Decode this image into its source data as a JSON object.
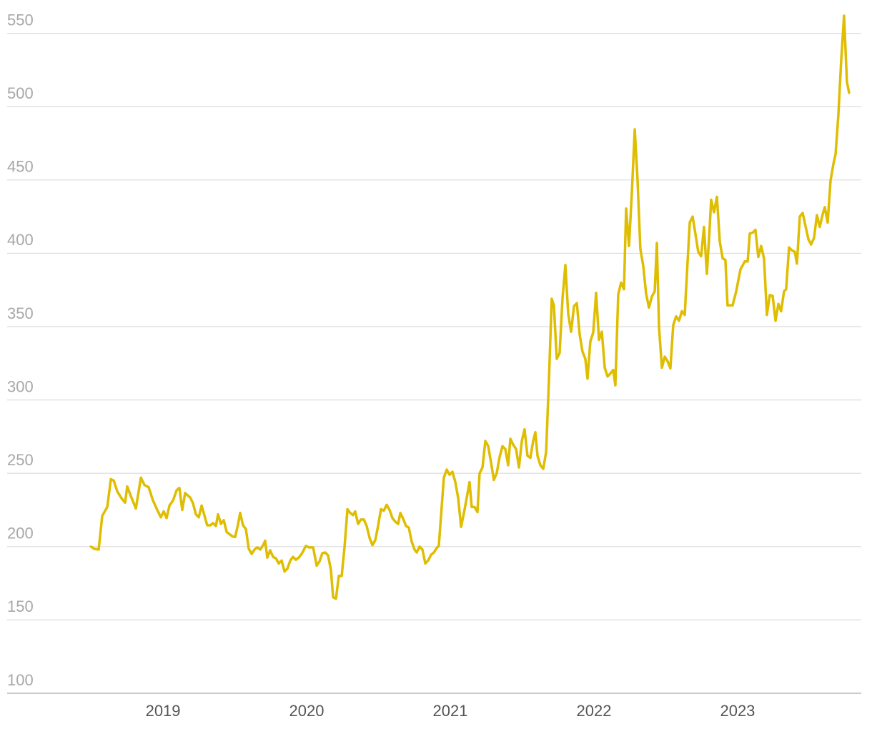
{
  "chart_data": {
    "type": "line",
    "color": "#dfbd00",
    "xlim": [
      2017.915,
      2023.861
    ],
    "xticks": [
      2019,
      2020,
      2021,
      2022,
      2023
    ],
    "ylim": [
      100,
      562
    ],
    "yticks": [
      100,
      150,
      200,
      250,
      300,
      350,
      400,
      450,
      500,
      550
    ],
    "grid": true,
    "x": [
      2018.498,
      2018.522,
      2018.552,
      2018.577,
      2018.612,
      2018.637,
      2018.657,
      2018.682,
      2018.711,
      2018.736,
      2018.751,
      2018.776,
      2018.811,
      2018.846,
      2018.871,
      2018.9,
      2018.93,
      2018.96,
      2018.985,
      2019.005,
      2019.025,
      2019.045,
      2019.07,
      2019.095,
      2019.114,
      2019.134,
      2019.154,
      2019.189,
      2019.209,
      2019.229,
      2019.249,
      2019.269,
      2019.289,
      2019.308,
      2019.328,
      2019.348,
      2019.368,
      2019.383,
      2019.403,
      2019.423,
      2019.443,
      2019.463,
      2019.483,
      2019.502,
      2019.522,
      2019.537,
      2019.557,
      2019.577,
      2019.597,
      2019.617,
      2019.637,
      2019.657,
      2019.677,
      2019.697,
      2019.711,
      2019.726,
      2019.746,
      2019.766,
      2019.786,
      2019.806,
      2019.826,
      2019.846,
      2019.866,
      2019.886,
      2019.905,
      2019.925,
      2019.945,
      2019.965,
      2019.995,
      2020.015,
      2020.045,
      2020.07,
      2020.09,
      2020.109,
      2020.129,
      2020.149,
      2020.169,
      2020.184,
      2020.204,
      2020.224,
      2020.244,
      2020.264,
      2020.284,
      2020.303,
      2020.323,
      2020.338,
      2020.358,
      2020.378,
      2020.398,
      2020.418,
      2020.438,
      2020.458,
      2020.478,
      2020.498,
      2020.517,
      2020.537,
      2020.557,
      2020.577,
      2020.597,
      2020.617,
      2020.637,
      2020.652,
      2020.672,
      2020.692,
      2020.711,
      2020.731,
      2020.751,
      2020.766,
      2020.786,
      2020.806,
      2020.826,
      2020.846,
      2020.866,
      2020.886,
      2020.905,
      2020.92,
      2020.955,
      2020.975,
      2020.995,
      2021.015,
      2021.035,
      2021.055,
      2021.075,
      2021.095,
      2021.114,
      2021.134,
      2021.149,
      2021.169,
      2021.189,
      2021.204,
      2021.224,
      2021.244,
      2021.264,
      2021.284,
      2021.303,
      2021.323,
      2021.343,
      2021.363,
      2021.383,
      2021.403,
      2021.418,
      2021.438,
      2021.458,
      2021.478,
      2021.498,
      2021.517,
      2021.537,
      2021.557,
      2021.577,
      2021.592,
      2021.607,
      2021.627,
      2021.647,
      2021.667,
      2021.687,
      2021.706,
      2021.721,
      2021.741,
      2021.761,
      2021.781,
      2021.801,
      2021.821,
      2021.841,
      2021.861,
      2021.881,
      2021.9,
      2021.92,
      2021.94,
      2021.955,
      2021.975,
      2021.995,
      2022.015,
      2022.035,
      2022.055,
      2022.075,
      2022.095,
      2022.114,
      2022.134,
      2022.149,
      2022.169,
      2022.189,
      2022.209,
      2022.224,
      2022.244,
      2022.264,
      2022.284,
      2022.303,
      2022.323,
      2022.343,
      2022.363,
      2022.383,
      2022.403,
      2022.423,
      2022.438,
      2022.453,
      2022.473,
      2022.493,
      2022.512,
      2022.532,
      2022.552,
      2022.572,
      2022.592,
      2022.612,
      2022.632,
      2022.652,
      2022.667,
      2022.687,
      2022.706,
      2022.726,
      2022.746,
      2022.766,
      2022.786,
      2022.801,
      2022.816,
      2022.836,
      2022.856,
      2022.876,
      2022.896,
      2022.915,
      2022.93,
      2022.965,
      2022.99,
      2023.02,
      2023.05,
      2023.07,
      2023.085,
      2023.104,
      2023.124,
      2023.144,
      2023.164,
      2023.184,
      2023.204,
      2023.224,
      2023.244,
      2023.264,
      2023.284,
      2023.303,
      2023.323,
      2023.338,
      2023.358,
      2023.378,
      2023.398,
      2023.413,
      2023.433,
      2023.453,
      2023.473,
      2023.493,
      2023.512,
      2023.532,
      2023.552,
      2023.572,
      2023.592,
      2023.607,
      2023.627,
      2023.647,
      2023.667,
      2023.682,
      2023.701,
      2023.721,
      2023.741,
      2023.761,
      2023.776
    ],
    "values": [
      200,
      198.5,
      198,
      221,
      227,
      246,
      245,
      237.5,
      233,
      230,
      241,
      234.5,
      226,
      247,
      242,
      240.5,
      231.5,
      225,
      220,
      224,
      219.5,
      228,
      231.5,
      238.5,
      240,
      225,
      236.5,
      233.5,
      229.5,
      222,
      220,
      228,
      221,
      214.5,
      214.5,
      216,
      214,
      222,
      215.5,
      218,
      210,
      208.5,
      207,
      206.5,
      215,
      223,
      214.5,
      212,
      198.5,
      195,
      198,
      199.5,
      198,
      201,
      204,
      192.5,
      197.5,
      193,
      192,
      188.5,
      190.5,
      183,
      185,
      190.5,
      193,
      191,
      192.5,
      195,
      200.5,
      199.5,
      199.5,
      187,
      190,
      195.5,
      196,
      194,
      184,
      165.5,
      164.5,
      180,
      180,
      200,
      225.5,
      223,
      221.5,
      224,
      215.5,
      218.5,
      218.5,
      214,
      206,
      201,
      204.5,
      214.5,
      225.5,
      224.5,
      228.5,
      225,
      219.5,
      217,
      215.5,
      223,
      219,
      214,
      213,
      203.5,
      198,
      196,
      200,
      198,
      188.5,
      190.5,
      194.5,
      196,
      199,
      200.5,
      247,
      252.5,
      249,
      251,
      244,
      233,
      213.5,
      223,
      233,
      244,
      227,
      227,
      223.5,
      250,
      254,
      272,
      268.5,
      257,
      245.5,
      250,
      261,
      268.5,
      266.5,
      255.5,
      273.5,
      269.5,
      266.5,
      254,
      272,
      280,
      262,
      260.5,
      272,
      278,
      262,
      255.5,
      253,
      264.5,
      314.5,
      369,
      364.5,
      328,
      332,
      369,
      392,
      358.5,
      346.5,
      364,
      366,
      345,
      333,
      328,
      314.5,
      340,
      346,
      373,
      341,
      346.5,
      322,
      316,
      318,
      320.5,
      310,
      372,
      380,
      375.5,
      430.5,
      405,
      441.5,
      484.5,
      451,
      403,
      391.5,
      372.5,
      363,
      370.5,
      374,
      407,
      349.5,
      322,
      329.5,
      326.5,
      321.5,
      351,
      357,
      354,
      360.5,
      358,
      394.5,
      421,
      425,
      413.5,
      401,
      398,
      418,
      386,
      409.5,
      436.5,
      428,
      438.5,
      408,
      396.5,
      395.5,
      364.5,
      364.5,
      374,
      389,
      394.5,
      394.5,
      413.5,
      414,
      416,
      397.5,
      405,
      396.5,
      358,
      371.5,
      371,
      354,
      365.5,
      360.5,
      374,
      375.5,
      404,
      402,
      401,
      393,
      425,
      427.5,
      418.5,
      409.5,
      406,
      410.5,
      426,
      418,
      426.5,
      431.5,
      421,
      449.5,
      461,
      467.5,
      493.5,
      531,
      562,
      517,
      509.5
    ]
  }
}
